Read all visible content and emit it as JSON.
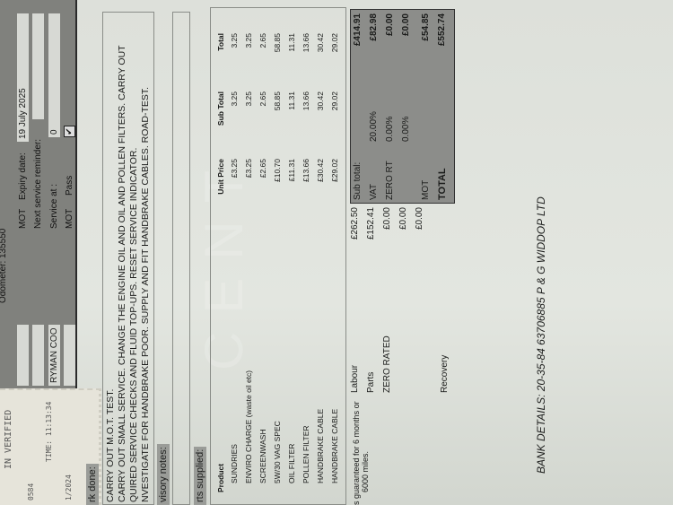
{
  "header": {
    "odometer_label": "Odometer:",
    "odometer_value": "135550",
    "mot_label": "MOT",
    "expiry_label": "Expiry date:",
    "expiry_value": "19 July 2025",
    "next_service_label": "Next service reminder:",
    "next_service_value": "",
    "service_at_label": "Service at :",
    "service_at_value": "0",
    "mot_result_label": "MOT",
    "mot_result_value": "Pass",
    "mot_pass_checked": true,
    "customer_value": "RYMAN COO"
  },
  "receipt": {
    "line1": "IN VERIFIED",
    "line2": "TIME: 11:13:34",
    "line3": "0584",
    "line4": "1/2024"
  },
  "work_done": {
    "label": "rk done:",
    "lines": [
      "CARRY OUT M.O.T. TEST.",
      "CARRY OUT SMALL SERVICE. CHANGE THE ENGINE OIL AND OIL AND POLLEN FILTERS. CARRY OUT",
      "QUIRED SERVICE CHECKS AND FLUID TOP-UPS. RESET SERVICE INDICATOR.",
      "NVESTIGATE FOR HANDBRAKE POOR. SUPPLY AND FIT HANDBRAKE CABLES. ROAD-TEST."
    ]
  },
  "advisory": {
    "label": "visory notes:"
  },
  "parts": {
    "label": "rts supplied:",
    "columns": [
      "Product",
      "Unit Price",
      "Sub Total",
      "Total"
    ],
    "rows": [
      [
        "SUNDRIES",
        "£3.25",
        "3.25",
        "3.25"
      ],
      [
        "ENVIRO CHARGE (waste oil etc)",
        "£3.25",
        "3.25",
        "3.25"
      ],
      [
        "SCREENWASH",
        "£2.65",
        "2.65",
        "2.65"
      ],
      [
        "5W/30 VAG SPEC",
        "£10.70",
        "58.85",
        "58.85"
      ],
      [
        "OIL FILTER",
        "£11.31",
        "11.31",
        "11.31"
      ],
      [
        "POLLEN FILTER",
        "£13.66",
        "13.66",
        "13.66"
      ],
      [
        "HANDBRAKE CABLE",
        "£30.42",
        "30.42",
        "30.42"
      ],
      [
        "HANDBRAKE CABLE",
        "£29.02",
        "29.02",
        "29.02"
      ]
    ]
  },
  "guarantee": {
    "line1": "s guaranteed for 6 months or",
    "line2": "6000 miles."
  },
  "charges": [
    {
      "label": "Labour",
      "value": "£262.50"
    },
    {
      "label": "Parts",
      "value": "£152.41"
    },
    {
      "label": "ZERO RATED",
      "value": "£0.00"
    },
    {
      "label": "",
      "value": "£0.00"
    },
    {
      "label": "Recovery",
      "value": "£0.00"
    }
  ],
  "summary": [
    {
      "label": "Sub total:",
      "rate": "",
      "value": "£414.91"
    },
    {
      "label": "VAT",
      "rate": "20.00%",
      "value": "£82.98"
    },
    {
      "label": "ZERO RT",
      "rate": "0.00%",
      "value": "£0.00"
    },
    {
      "label": "",
      "rate": "0.00%",
      "value": "£0.00"
    },
    {
      "label": "MOT",
      "rate": "",
      "value": "£54.85"
    },
    {
      "label": "TOTAL",
      "rate": "",
      "value": "£552.74"
    }
  ],
  "bank_details": "BANK DETAILS: 20-35-84  63706885  P & G WIDDOP LTD",
  "watermark": "CENT"
}
